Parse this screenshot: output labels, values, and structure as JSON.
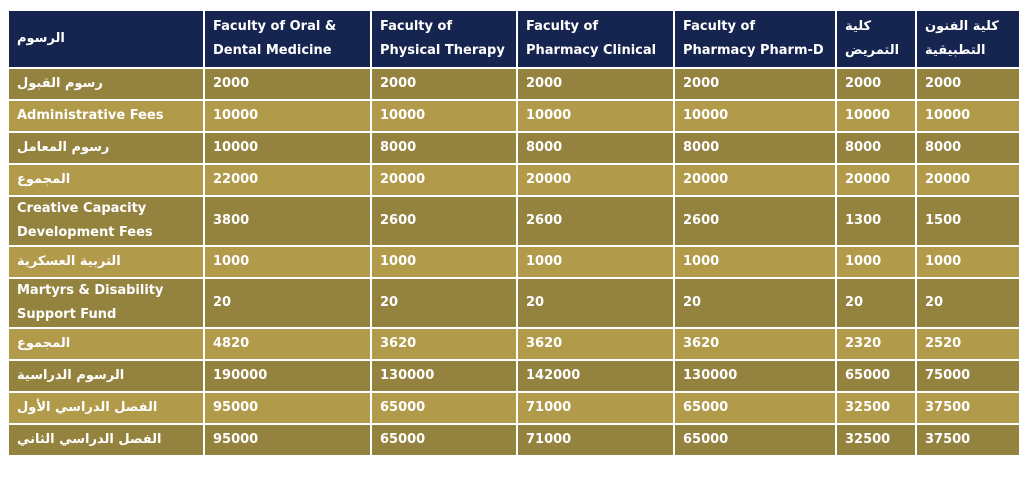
{
  "table": {
    "headers": [
      "الرسوم",
      "Faculty of Oral & Dental Medicine",
      "Faculty of Physical Therapy",
      "Faculty of Pharmacy Clinical",
      "Faculty of Pharmacy Pharm-D",
      "كلية التمريض",
      "كلية الفنون التطبيقية"
    ],
    "rows": [
      {
        "label": "رسوم القبول",
        "values": [
          "2000",
          "2000",
          "2000",
          "2000",
          "2000",
          "2000"
        ]
      },
      {
        "label": "Administrative Fees",
        "values": [
          "10000",
          "10000",
          "10000",
          "10000",
          "10000",
          "10000"
        ]
      },
      {
        "label": "رسوم المعامل",
        "values": [
          "10000",
          "8000",
          "8000",
          "8000",
          "8000",
          "8000"
        ]
      },
      {
        "label": "المجموع",
        "values": [
          "22000",
          "20000",
          "20000",
          "20000",
          "20000",
          "20000"
        ]
      },
      {
        "label": "Creative Capacity Development Fees",
        "values": [
          "3800",
          "2600",
          "2600",
          "2600",
          "1300",
          "1500"
        ]
      },
      {
        "label": "التربية العسكرية",
        "values": [
          "1000",
          "1000",
          "1000",
          "1000",
          "1000",
          "1000"
        ]
      },
      {
        "label": "Martyrs & Disability Support Fund",
        "values": [
          "20",
          "20",
          "20",
          "20",
          "20",
          "20"
        ]
      },
      {
        "label": "المجموع",
        "values": [
          "4820",
          "3620",
          "3620",
          "3620",
          "2320",
          "2520"
        ]
      },
      {
        "label": "الرسوم الدراسية",
        "values": [
          "190000",
          "130000",
          "142000",
          "130000",
          "65000",
          "75000"
        ]
      },
      {
        "label": "الفصل الدراسي الأول",
        "values": [
          "95000",
          "65000",
          "71000",
          "65000",
          "32500",
          "37500"
        ]
      },
      {
        "label": "الفصل الدراسي الثاني",
        "values": [
          "95000",
          "65000",
          "71000",
          "65000",
          "32500",
          "37500"
        ]
      }
    ]
  },
  "colors": {
    "header_bg": "#16254f",
    "row_dark": "#94823f",
    "row_light": "#b29a4b",
    "text": "#ffffff"
  }
}
